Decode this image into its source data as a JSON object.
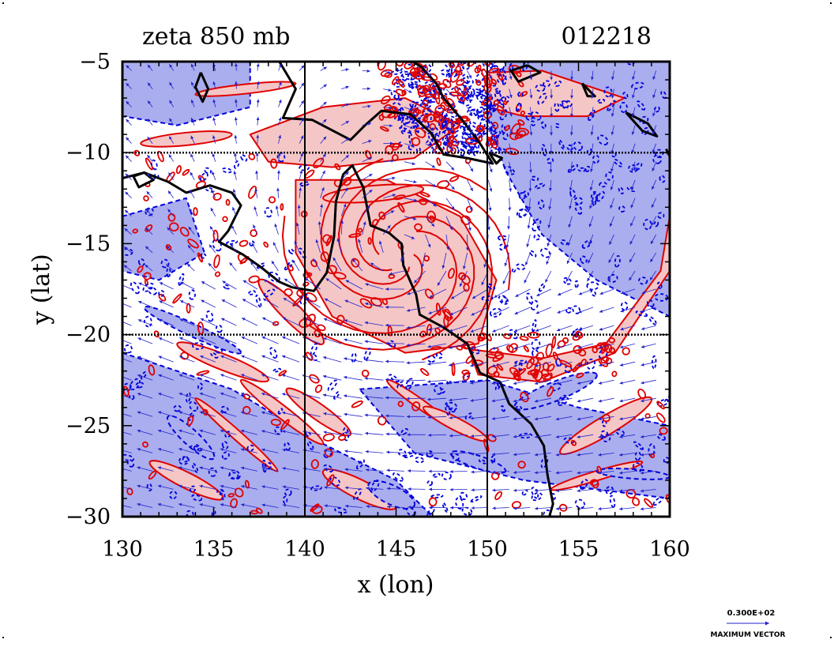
{
  "header": {
    "title": "zeta 850 mb",
    "timestamp": "012218"
  },
  "chart_data": {
    "type": "contour-vector-map",
    "title": "zeta 850 mb",
    "time_label": "012218",
    "xlabel": "x (lon)",
    "ylabel": "y (lat)",
    "xlim": [
      130,
      160
    ],
    "ylim": [
      -30,
      -5
    ],
    "x_ticks": [
      130,
      135,
      140,
      145,
      150,
      155,
      160
    ],
    "y_ticks": [
      -5,
      -10,
      -15,
      -20,
      -25,
      -30
    ],
    "x_tick_labels": [
      "130",
      "135",
      "140",
      "145",
      "150",
      "155",
      "160"
    ],
    "y_tick_labels": [
      "−5",
      "−10",
      "−15",
      "−20",
      "−25",
      "−30"
    ],
    "grid_lon": [
      140,
      150
    ],
    "grid_lat": [
      -10,
      -20
    ],
    "vortex_center": [
      145.3,
      -15.6
    ],
    "colors": {
      "positive_fill": "#f4c6c6",
      "positive_line": "#e00000",
      "negative_fill": "#aaaeee",
      "negative_line": "#0000dd",
      "vector": "#2222cc",
      "coast": "#000000"
    }
  },
  "legend": {
    "vector_value": "0.300E+02",
    "vector_label": "MAXIMUM VECTOR"
  }
}
